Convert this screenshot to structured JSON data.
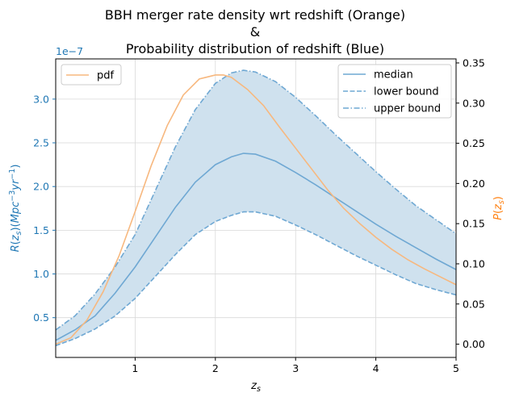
{
  "chart_data": {
    "type": "line",
    "title_lines": [
      "BBH merger rate density wrt redshift (Orange)",
      "&",
      "Probability distribution of redshift (Blue)"
    ],
    "xlabel": "z_s",
    "ylabel_left": "R(z_s)(Mpc^-3 yr^-1)",
    "ylabel_right": "P(z_s)",
    "left_axis_offset": "1e−7",
    "grid": true,
    "xlim": [
      0.01,
      5.0
    ],
    "ylim_left": [
      0.0451,
      3.46
    ],
    "ylim_right": [
      -0.0165,
      0.355
    ],
    "x_ticks": [
      1,
      2,
      3,
      4,
      5
    ],
    "x_tick_labels": [
      "1",
      "2",
      "3",
      "4",
      "5"
    ],
    "left_ticks": [
      0.5,
      1.0,
      1.5,
      2.0,
      2.5,
      3.0
    ],
    "left_tick_labels": [
      "0.5",
      "1.0",
      "1.5",
      "2.0",
      "2.5",
      "3.0"
    ],
    "right_ticks": [
      0.0,
      0.05,
      0.1,
      0.15,
      0.2,
      0.25,
      0.3,
      0.35
    ],
    "right_tick_labels": [
      "0.00",
      "0.05",
      "0.10",
      "0.15",
      "0.20",
      "0.25",
      "0.30",
      "0.35"
    ],
    "colors": {
      "left_axis": "#1f77b4",
      "right_axis": "#ff7f0e",
      "blue_line": "#6fa8d3",
      "band_fill": "#cfe1ee",
      "orange_line": "#f7b87f",
      "grid": "#d9d9d9"
    },
    "legend_left": {
      "position": "top-left",
      "entries": [
        "pdf"
      ]
    },
    "legend_right": {
      "position": "top-right",
      "entries": [
        "median",
        "lower bound",
        "upper bound"
      ]
    },
    "rate_x": [
      0.01,
      0.25,
      0.5,
      0.75,
      1.0,
      1.25,
      1.5,
      1.75,
      2.0,
      2.2,
      2.35,
      2.5,
      2.75,
      3.0,
      3.25,
      3.5,
      3.75,
      4.0,
      4.25,
      4.5,
      4.75,
      5.0
    ],
    "series": [
      {
        "name": "median",
        "axis": "left",
        "style": "solid",
        "values": [
          0.24,
          0.36,
          0.52,
          0.78,
          1.08,
          1.42,
          1.76,
          2.05,
          2.25,
          2.34,
          2.38,
          2.37,
          2.29,
          2.16,
          2.02,
          1.87,
          1.72,
          1.57,
          1.43,
          1.3,
          1.17,
          1.05
        ]
      },
      {
        "name": "lower bound",
        "axis": "left",
        "style": "dashed",
        "values": [
          0.18,
          0.26,
          0.37,
          0.52,
          0.72,
          0.97,
          1.22,
          1.45,
          1.6,
          1.67,
          1.71,
          1.71,
          1.66,
          1.56,
          1.45,
          1.33,
          1.21,
          1.1,
          0.99,
          0.89,
          0.82,
          0.76
        ]
      },
      {
        "name": "upper bound",
        "axis": "left",
        "style": "dashdot",
        "values": [
          0.36,
          0.52,
          0.77,
          1.08,
          1.45,
          1.95,
          2.45,
          2.88,
          3.18,
          3.3,
          3.33,
          3.31,
          3.2,
          3.02,
          2.81,
          2.59,
          2.38,
          2.17,
          1.97,
          1.78,
          1.62,
          1.46
        ]
      },
      {
        "name": "pdf",
        "axis": "right",
        "style": "solid",
        "x": [
          0.01,
          0.2,
          0.4,
          0.6,
          0.8,
          1.0,
          1.2,
          1.4,
          1.6,
          1.8,
          2.0,
          2.1,
          2.2,
          2.4,
          2.6,
          2.8,
          3.0,
          3.2,
          3.4,
          3.6,
          3.8,
          4.0,
          4.2,
          4.4,
          4.6,
          4.8,
          5.0
        ],
        "values": [
          0.0,
          0.008,
          0.03,
          0.065,
          0.11,
          0.165,
          0.222,
          0.272,
          0.31,
          0.33,
          0.335,
          0.335,
          0.332,
          0.317,
          0.297,
          0.27,
          0.244,
          0.218,
          0.192,
          0.169,
          0.15,
          0.133,
          0.118,
          0.105,
          0.094,
          0.084,
          0.074
        ]
      }
    ]
  }
}
